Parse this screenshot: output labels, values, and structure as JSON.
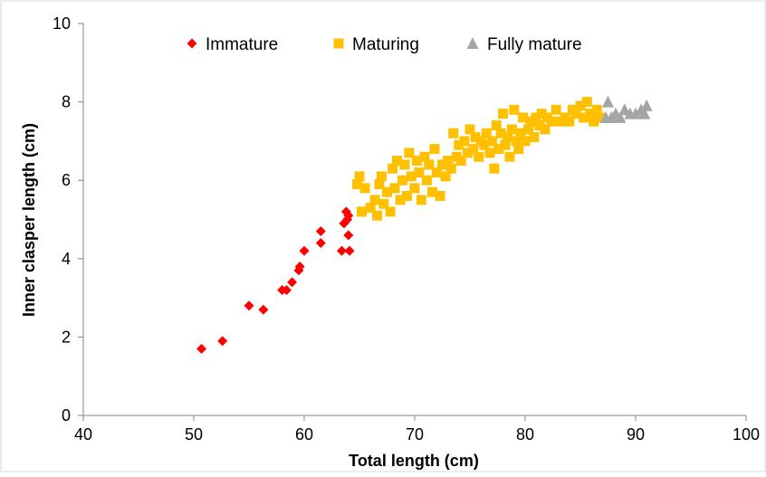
{
  "chart_data": {
    "type": "scatter",
    "title": "",
    "xlabel": "Total length (cm)",
    "ylabel": "Inner clasper length (cm)",
    "xlim": [
      40,
      100
    ],
    "ylim": [
      0,
      10
    ],
    "xticks": [
      40,
      50,
      60,
      70,
      80,
      90,
      100
    ],
    "yticks": [
      0,
      2,
      4,
      6,
      8,
      10
    ],
    "grid": false,
    "legend_position": "top",
    "series": [
      {
        "name": "Immature",
        "marker": "diamond",
        "color": "#ff0000",
        "points": [
          [
            50.7,
            1.7
          ],
          [
            52.6,
            1.9
          ],
          [
            55.0,
            2.8
          ],
          [
            56.3,
            2.7
          ],
          [
            58.0,
            3.2
          ],
          [
            58.4,
            3.2
          ],
          [
            58.9,
            3.4
          ],
          [
            59.5,
            3.7
          ],
          [
            59.6,
            3.8
          ],
          [
            60.0,
            4.2
          ],
          [
            61.5,
            4.4
          ],
          [
            61.5,
            4.7
          ],
          [
            63.4,
            4.2
          ],
          [
            63.6,
            4.9
          ],
          [
            63.8,
            5.2
          ],
          [
            63.9,
            5.0
          ],
          [
            64.0,
            5.1
          ],
          [
            64.0,
            4.6
          ],
          [
            64.1,
            4.2
          ]
        ]
      },
      {
        "name": "Maturing",
        "marker": "square",
        "color": "#ffc000",
        "points": [
          [
            64.8,
            5.9
          ],
          [
            65.0,
            6.1
          ],
          [
            65.2,
            5.2
          ],
          [
            65.5,
            5.8
          ],
          [
            66.0,
            5.3
          ],
          [
            66.4,
            5.5
          ],
          [
            66.6,
            5.1
          ],
          [
            66.8,
            5.9
          ],
          [
            67.0,
            6.1
          ],
          [
            67.2,
            5.4
          ],
          [
            67.5,
            5.7
          ],
          [
            67.8,
            5.2
          ],
          [
            68.0,
            6.3
          ],
          [
            68.2,
            5.8
          ],
          [
            68.4,
            6.5
          ],
          [
            68.7,
            5.5
          ],
          [
            68.9,
            6.0
          ],
          [
            69.1,
            6.4
          ],
          [
            69.3,
            5.6
          ],
          [
            69.5,
            6.7
          ],
          [
            69.7,
            6.1
          ],
          [
            70.0,
            5.8
          ],
          [
            70.2,
            6.5
          ],
          [
            70.4,
            6.2
          ],
          [
            70.6,
            5.5
          ],
          [
            70.9,
            6.6
          ],
          [
            71.1,
            6.0
          ],
          [
            71.3,
            6.4
          ],
          [
            71.6,
            5.7
          ],
          [
            71.8,
            6.8
          ],
          [
            72.0,
            6.2
          ],
          [
            72.3,
            5.6
          ],
          [
            72.5,
            6.4
          ],
          [
            72.8,
            6.1
          ],
          [
            73.0,
            6.5
          ],
          [
            73.3,
            6.3
          ],
          [
            73.5,
            7.2
          ],
          [
            73.8,
            6.6
          ],
          [
            74.0,
            6.9
          ],
          [
            74.2,
            6.5
          ],
          [
            74.5,
            7.0
          ],
          [
            74.8,
            6.7
          ],
          [
            75.0,
            7.3
          ],
          [
            75.3,
            6.8
          ],
          [
            75.5,
            7.1
          ],
          [
            75.8,
            6.6
          ],
          [
            76.0,
            7.0
          ],
          [
            76.3,
            6.9
          ],
          [
            76.5,
            7.2
          ],
          [
            76.8,
            6.7
          ],
          [
            77.0,
            7.0
          ],
          [
            77.2,
            6.3
          ],
          [
            77.4,
            7.4
          ],
          [
            77.6,
            6.8
          ],
          [
            77.8,
            7.2
          ],
          [
            78.0,
            7.7
          ],
          [
            78.2,
            6.9
          ],
          [
            78.4,
            7.1
          ],
          [
            78.6,
            6.6
          ],
          [
            78.8,
            7.3
          ],
          [
            79.0,
            7.8
          ],
          [
            79.2,
            7.0
          ],
          [
            79.4,
            6.8
          ],
          [
            79.6,
            7.2
          ],
          [
            79.8,
            7.6
          ],
          [
            80.0,
            7.0
          ],
          [
            80.3,
            7.3
          ],
          [
            80.5,
            7.5
          ],
          [
            80.8,
            7.1
          ],
          [
            81.0,
            7.6
          ],
          [
            81.3,
            7.4
          ],
          [
            81.5,
            7.7
          ],
          [
            81.8,
            7.3
          ],
          [
            82.0,
            7.6
          ],
          [
            82.4,
            7.5
          ],
          [
            82.8,
            7.8
          ],
          [
            83.2,
            7.5
          ],
          [
            83.6,
            7.6
          ],
          [
            84.0,
            7.5
          ],
          [
            84.3,
            7.8
          ],
          [
            84.6,
            7.7
          ],
          [
            85.0,
            7.9
          ],
          [
            85.3,
            7.6
          ],
          [
            85.6,
            8.0
          ],
          [
            85.9,
            7.7
          ],
          [
            86.2,
            7.5
          ],
          [
            86.5,
            7.8
          ],
          [
            86.8,
            7.6
          ]
        ]
      },
      {
        "name": "Fully mature",
        "marker": "triangle",
        "color": "#a5a5a5",
        "points": [
          [
            87.3,
            7.6
          ],
          [
            87.5,
            8.0
          ],
          [
            87.8,
            7.6
          ],
          [
            88.2,
            7.7
          ],
          [
            88.6,
            7.6
          ],
          [
            89.0,
            7.8
          ],
          [
            89.5,
            7.7
          ],
          [
            90.0,
            7.7
          ],
          [
            90.5,
            7.8
          ],
          [
            90.8,
            7.7
          ],
          [
            91.0,
            7.9
          ]
        ]
      }
    ]
  }
}
